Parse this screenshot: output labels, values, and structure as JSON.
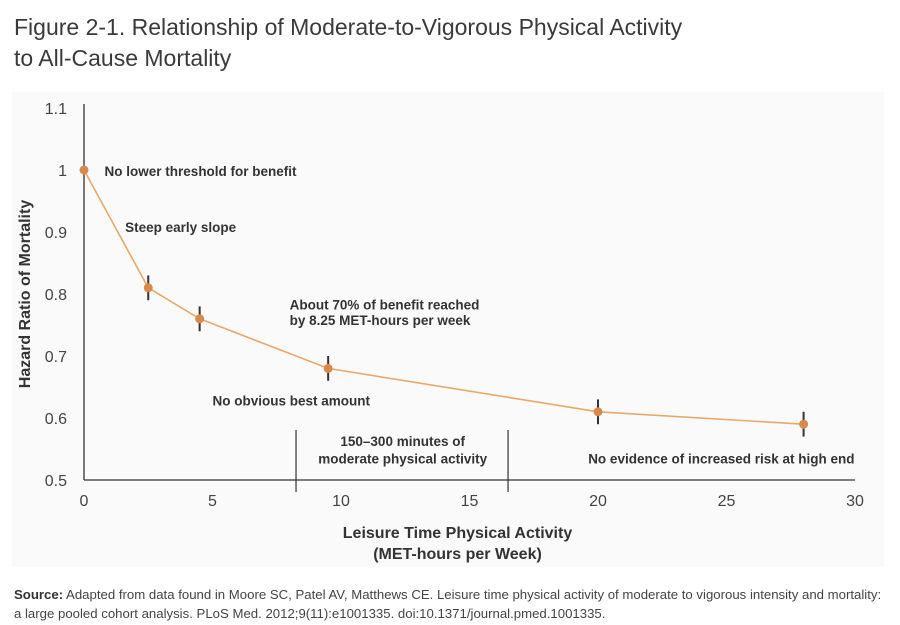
{
  "figure": {
    "title_line1": "Figure 2-1. Relationship of Moderate-to-Vigorous Physical Activity",
    "title_line2": "to All-Cause Mortality"
  },
  "source": {
    "label": "Source:",
    "text": " Adapted from data found in Moore SC, Patel AV, Matthews CE. Leisure time physical activity of moderate to vigorous intensity and mortality: a large pooled cohort analysis. PLoS Med. 2012;9(11):e1001335. doi:10.1371/journal.pmed.1001335."
  },
  "colors": {
    "line": "#e8a86a",
    "point": "#d9894a",
    "error_bar": "#333333",
    "axis": "#333333"
  },
  "chart_data": {
    "type": "line",
    "title": "Figure 2-1. Relationship of Moderate-to-Vigorous Physical Activity to All-Cause Mortality",
    "xlabel_line1": "Leisure Time Physical Activity",
    "xlabel_line2": "(MET-hours per Week)",
    "ylabel": "Hazard Ratio of Mortality",
    "xlim": [
      0,
      30
    ],
    "ylim": [
      0.5,
      1.1
    ],
    "x_ticks": [
      "0",
      "5",
      "10",
      "15",
      "20",
      "25",
      "30"
    ],
    "x_tick_values": [
      0,
      5,
      10,
      15,
      20,
      25,
      30
    ],
    "y_ticks": [
      "0.5",
      "0.6",
      "0.7",
      "0.8",
      "0.9",
      "1",
      "1.1"
    ],
    "y_tick_values": [
      0.5,
      0.6,
      0.7,
      0.8,
      0.9,
      1.0,
      1.1
    ],
    "grid": false,
    "series": [
      {
        "x": [
          0,
          2.5,
          4.5,
          9.5,
          20,
          28
        ],
        "y": [
          1.0,
          0.81,
          0.76,
          0.68,
          0.61,
          0.59
        ],
        "error_low": [
          null,
          0.79,
          0.74,
          0.66,
          0.59,
          0.57
        ],
        "error_high": [
          null,
          0.83,
          0.78,
          0.7,
          0.63,
          0.61
        ]
      }
    ],
    "reference_lines_x": [
      8.25,
      16.5
    ],
    "annotations": [
      {
        "text": "No lower threshold for benefit",
        "x": 0.8,
        "y": 0.99
      },
      {
        "text": "Steep early slope",
        "x": 1.6,
        "y": 0.9
      },
      {
        "text": "About 70% of benefit reached",
        "x": 8,
        "y": 0.775
      },
      {
        "text": "by 8.25 MET-hours per week",
        "x": 8,
        "y": 0.75
      },
      {
        "text": "No obvious best amount",
        "x": 5,
        "y": 0.62
      },
      {
        "text": "150–300 minutes of",
        "x": 12.4,
        "y": 0.555
      },
      {
        "text": "moderate physical activity",
        "x": 12.4,
        "y": 0.527
      },
      {
        "text": "No evidence of increased risk at high end",
        "x": 24.8,
        "y": 0.527
      }
    ]
  }
}
